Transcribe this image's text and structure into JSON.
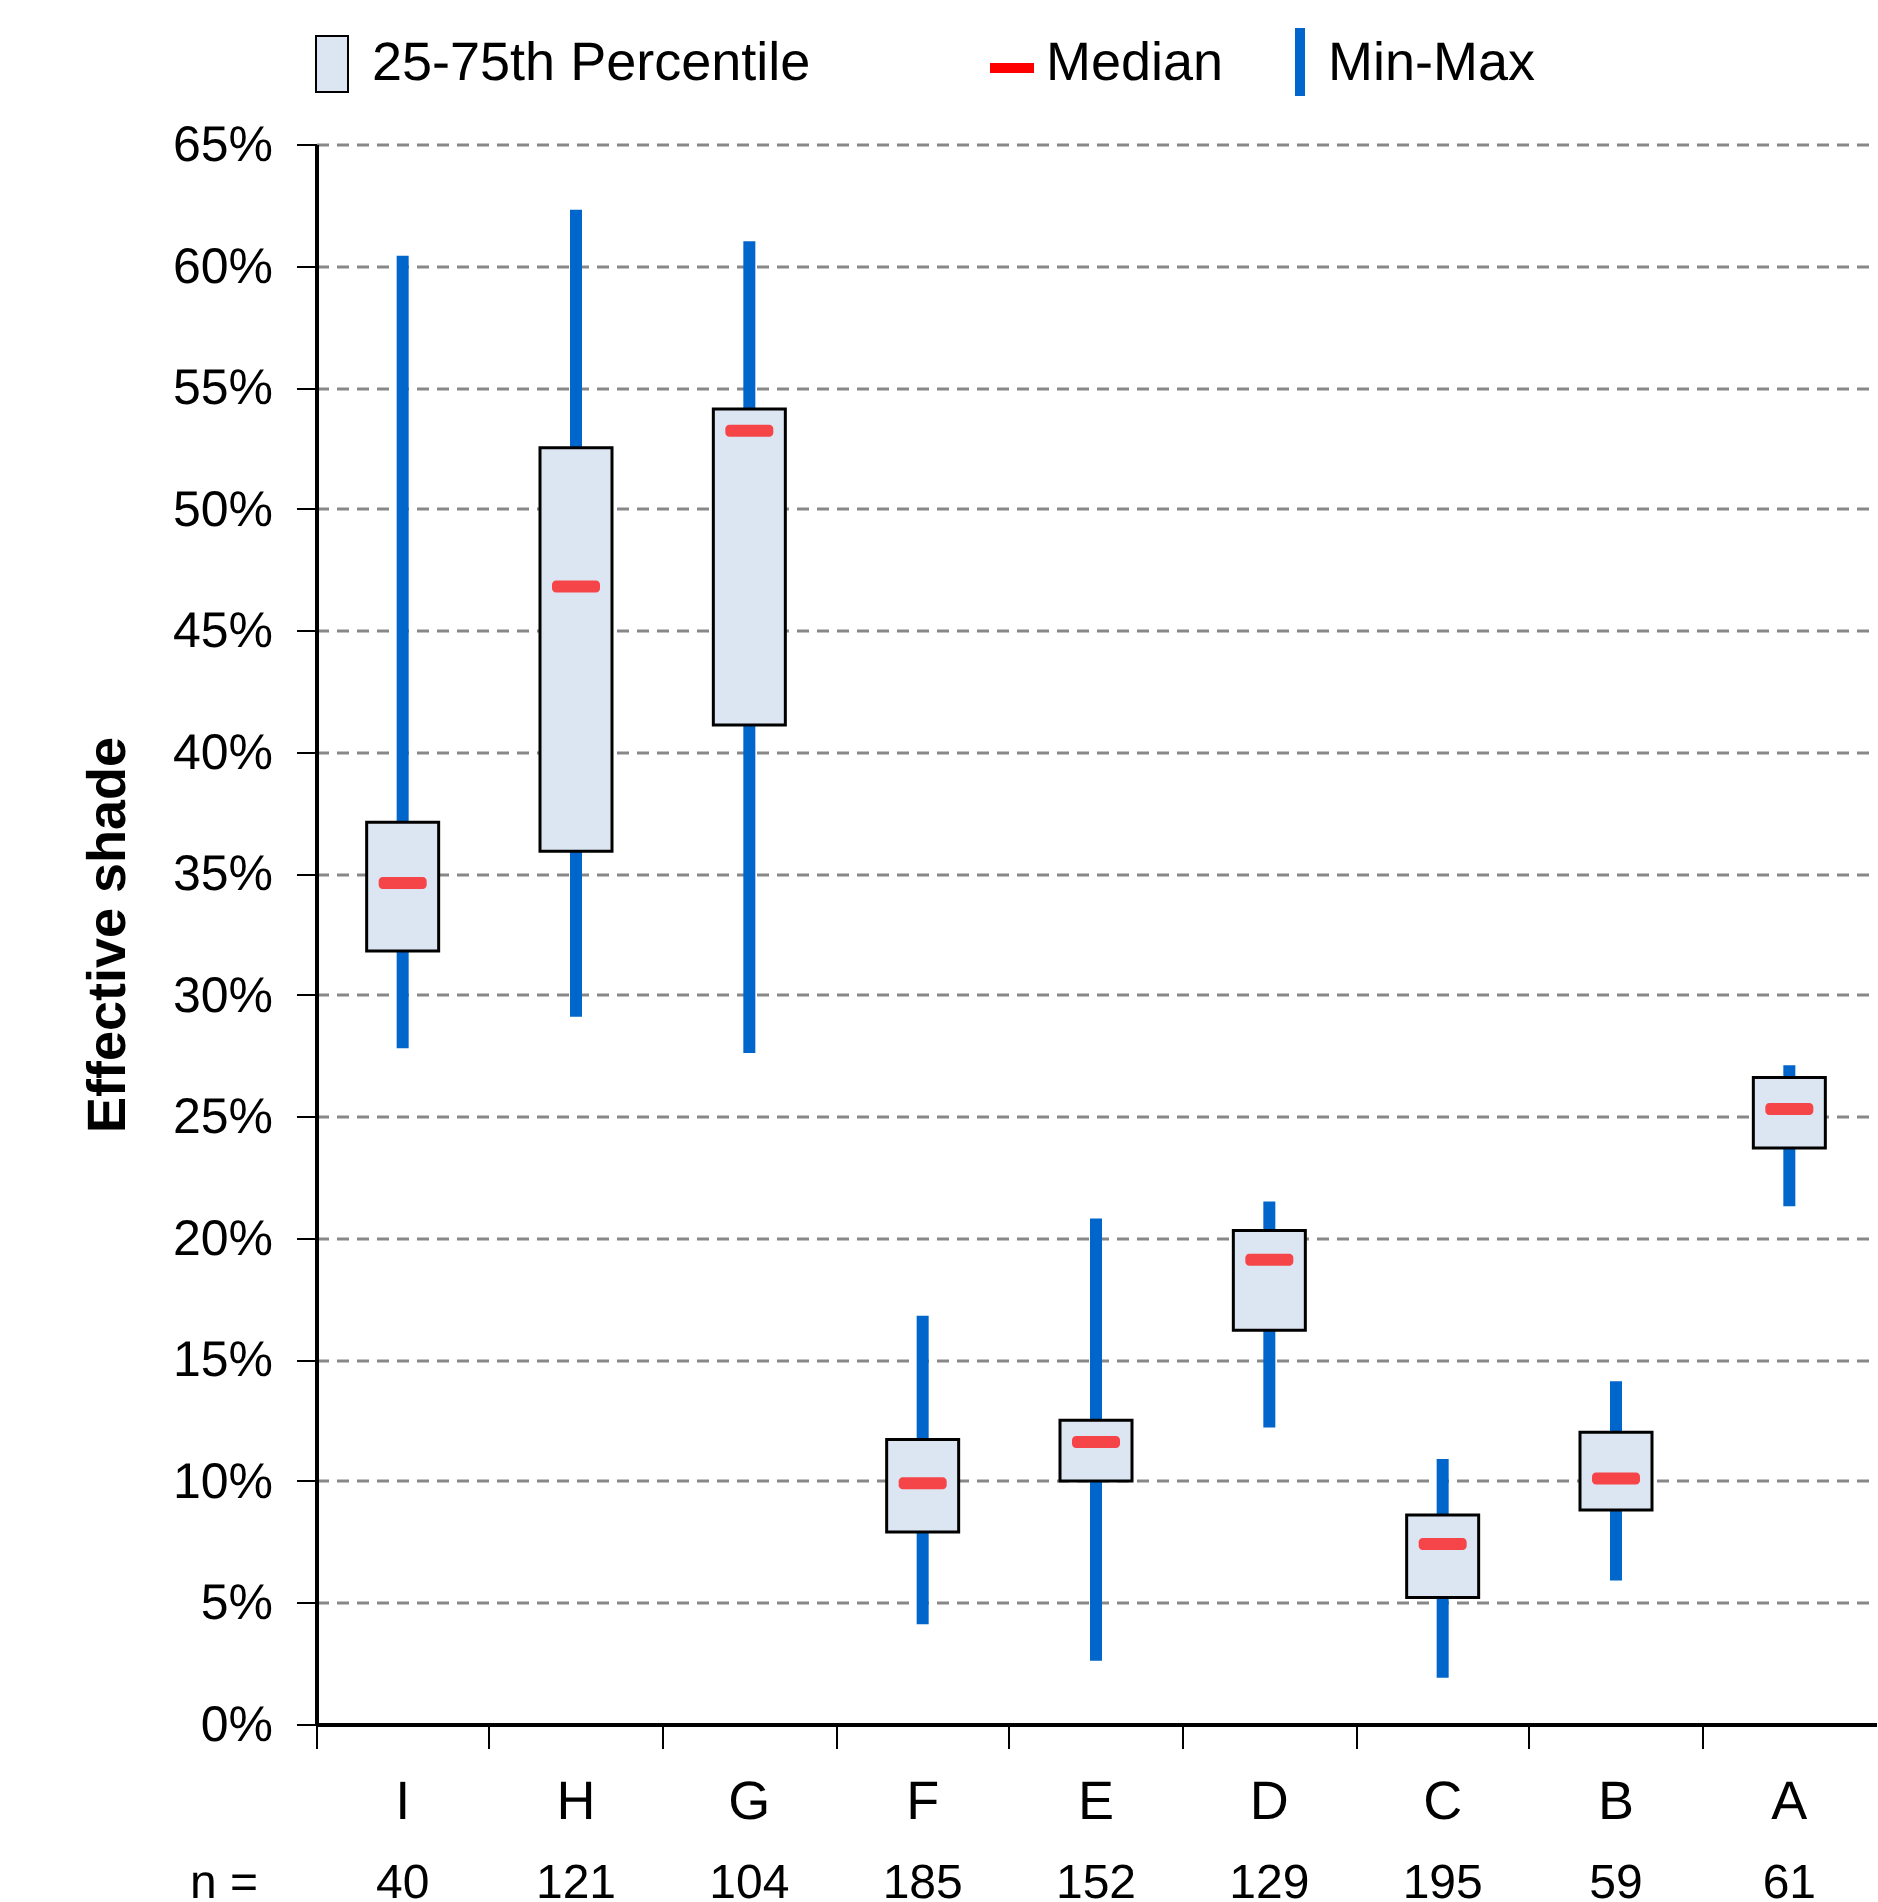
{
  "chart_data": {
    "type": "box",
    "ylabel": "Effective shade",
    "legend": "top",
    "grid": "y",
    "line_style": "dashed",
    "categories": [
      "I",
      "H",
      "G",
      "F",
      "E",
      "D",
      "C",
      "B",
      "A"
    ],
    "ylim": [
      0,
      65
    ],
    "yticks": [
      {
        "value": 0,
        "label": "0%"
      },
      {
        "value": 5,
        "label": "5%"
      },
      {
        "value": 10,
        "label": "10%"
      },
      {
        "value": 15,
        "label": "15%"
      },
      {
        "value": 20,
        "label": "20%"
      },
      {
        "value": 25,
        "label": "25%"
      },
      {
        "value": 30,
        "label": "30%"
      },
      {
        "value": 35,
        "label": "35%"
      },
      {
        "value": 40,
        "label": "40%"
      },
      {
        "value": 45,
        "label": "45%"
      },
      {
        "value": 50,
        "label": "50%"
      },
      {
        "value": 55,
        "label": "55%"
      },
      {
        "value": 60,
        "label": "60%"
      },
      {
        "value": 65,
        "label": "65%"
      }
    ],
    "series": [
      {
        "name": "25-75th Percentile",
        "color": "#dce6f2",
        "boxes": [
          {
            "low": 27.8,
            "q1": 31.8,
            "median": 34.6,
            "q3": 37.1,
            "high": 60.4
          },
          {
            "low": 29.1,
            "q1": 35.9,
            "median": 46.8,
            "q3": 52.5,
            "high": 62.3
          },
          {
            "low": 27.6,
            "q1": 41.1,
            "median": 53.2,
            "q3": 54.1,
            "high": 61.0
          },
          {
            "low": 4.1,
            "q1": 7.9,
            "median": 9.9,
            "q3": 11.7,
            "high": 16.8
          },
          {
            "low": 2.6,
            "q1": 10.0,
            "median": 11.6,
            "q3": 12.5,
            "high": 20.8
          },
          {
            "low": 12.2,
            "q1": 16.2,
            "median": 19.1,
            "q3": 20.3,
            "high": 21.5
          },
          {
            "low": 1.9,
            "q1": 5.2,
            "median": 7.4,
            "q3": 8.6,
            "high": 10.9
          },
          {
            "low": 5.9,
            "q1": 8.8,
            "median": 10.1,
            "q3": 12.0,
            "high": 14.1
          },
          {
            "low": 21.3,
            "q1": 23.7,
            "median": 25.3,
            "q3": 26.6,
            "high": 27.1
          }
        ]
      }
    ],
    "annotations": [
      "Median",
      "Min-Max",
      "n =",
      "40",
      "121",
      "104",
      "185",
      "152",
      "129",
      "195",
      "59",
      "61"
    ]
  }
}
